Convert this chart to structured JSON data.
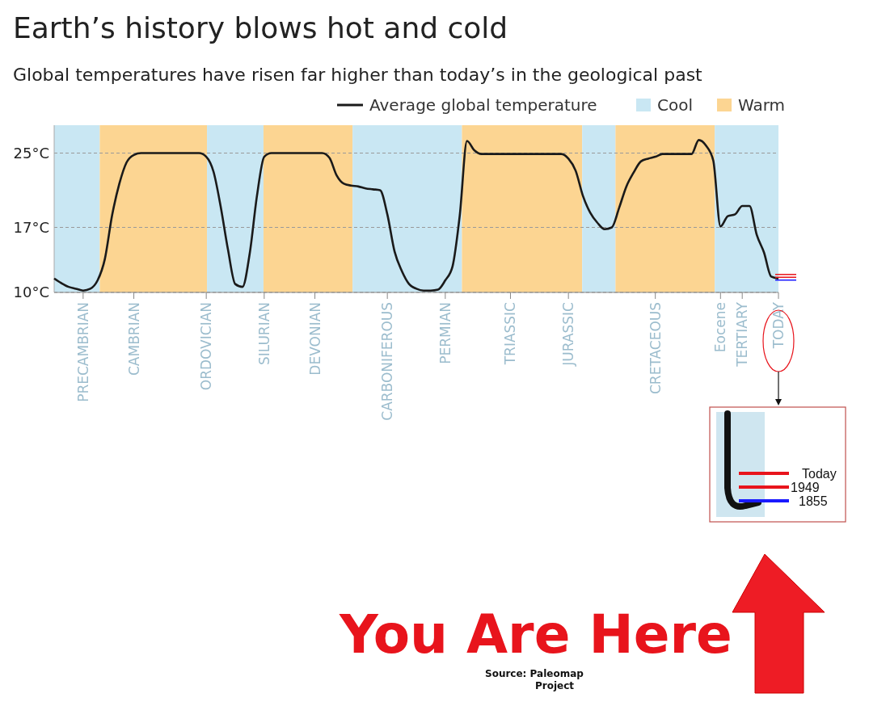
{
  "chart_data": {
    "type": "line",
    "title": "Earth’s history blows hot and cold",
    "subtitle": "Global temperatures have risen far higher than today’s in the geological past",
    "categories": [
      null,
      null,
      null,
      null,
      "PRECAMBRIAN",
      null,
      null,
      null,
      null,
      null,
      null,
      "CAMBRIAN",
      null,
      null,
      null,
      null,
      null,
      null,
      null,
      null,
      null,
      "ORDOVICIAN",
      null,
      null,
      null,
      null,
      null,
      null,
      null,
      "SILURIAN",
      null,
      null,
      null,
      null,
      null,
      null,
      "DEVONIAN",
      null,
      null,
      null,
      null,
      null,
      null,
      null,
      null,
      null,
      "CARBONIFEROUS",
      null,
      null,
      null,
      null,
      null,
      null,
      null,
      "PERMIAN",
      null,
      null,
      null,
      null,
      null,
      null,
      null,
      null,
      "TRIASSIC",
      null,
      null,
      null,
      null,
      null,
      null,
      null,
      "JURASSIC",
      null,
      null,
      null,
      null,
      null,
      null,
      null,
      null,
      null,
      null,
      null,
      "CRETACEOUS",
      null,
      null,
      null,
      null,
      null,
      null,
      null,
      null,
      "Eocene",
      null,
      null,
      "TERTIARY",
      null,
      null,
      null,
      null,
      "TODAY"
    ],
    "ylim": [
      10,
      28
    ],
    "yticks": [
      {
        "value": 10,
        "label": "10°C"
      },
      {
        "value": 17,
        "label": "17°C"
      },
      {
        "value": 25,
        "label": "25°C"
      }
    ],
    "grid": "y",
    "legend": "top right",
    "series": [
      {
        "name": "Average global temperature",
        "color": "#1a1a1a",
        "values": [
          11.5,
          11.0,
          10.6,
          10.4,
          10.2,
          10.4,
          11.3,
          13.6,
          18.3,
          21.7,
          24.0,
          24.8,
          25,
          25,
          25,
          25,
          25,
          25,
          25,
          25,
          25,
          24.6,
          23.0,
          19.2,
          14.6,
          10.9,
          10.6,
          14.2,
          20.4,
          24.6,
          25,
          25,
          25,
          25,
          25,
          25,
          25,
          25,
          24.5,
          22.6,
          21.7,
          21.5,
          21.4,
          21.2,
          21.1,
          21.0,
          18.4,
          14.4,
          12.3,
          10.9,
          10.4,
          10.2,
          10.2,
          10.3,
          11.3,
          12.8,
          18.3,
          26.3,
          25.3,
          24.9,
          24.9,
          24.9,
          24.9,
          24.9,
          24.9,
          24.9,
          24.9,
          24.9,
          24.9,
          24.9,
          24.9,
          24.4,
          23.1,
          20.4,
          18.6,
          17.5,
          16.8,
          17.0,
          19.1,
          21.4,
          22.9,
          24.1,
          24.4,
          24.6,
          24.9,
          24.9,
          24.9,
          24.9,
          24.9,
          26.4,
          25.8,
          24.2,
          17.1,
          18.2,
          18.4,
          19.3,
          19.3,
          16.2,
          14.3,
          11.7,
          11.5
        ]
      }
    ],
    "annotations": [
      "Today",
      "1949",
      "1855",
      "You Are Here",
      "Source: Paleomap Project",
      "Cool",
      "Warm"
    ]
  }
}
